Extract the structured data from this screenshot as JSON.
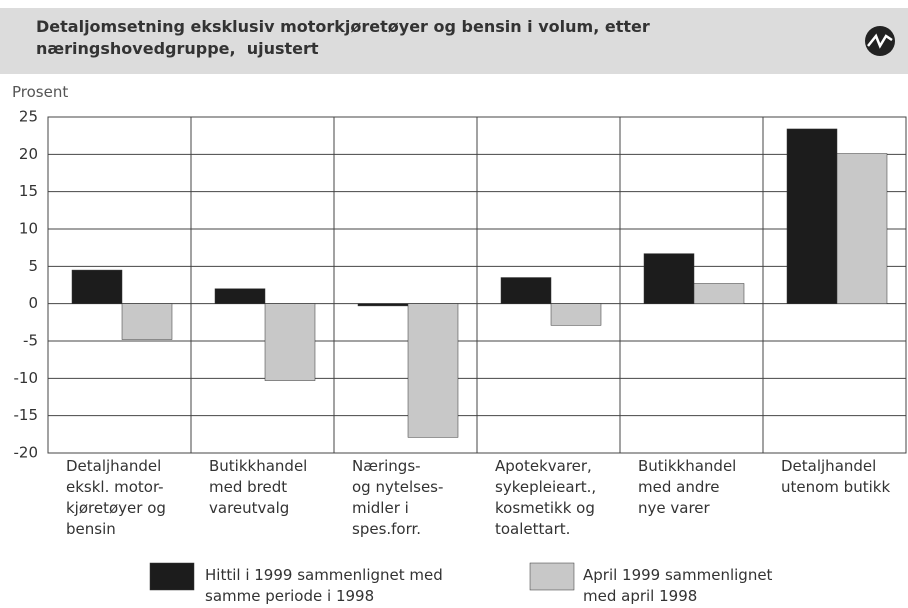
{
  "chart_data": {
    "type": "bar",
    "title": "Detaljomsetning eksklusiv motorkjøretøyer og bensin i volum, etter\nnæringshovedgruppe,  ujustert",
    "y_label": "Prosent",
    "categories": [
      "Detaljhandel\nekskl. motor-\nkjøretøyer og\nbensin",
      "Butikkhandel\nmed bredt\nvareutvalg",
      "Nærings-\nog nytelses-\nmidler i\nspes.forr.",
      "Apotekvarer,\nsykepleieart.,\nkosmetikk og\ntoalettart.",
      "Butikkhandel\nmed andre\nnye varer",
      "Detaljhandel\nutenom butikk"
    ],
    "series": [
      {
        "name": "Hittil i 1999 sammenlignet med\nsamme periode i 1998",
        "color": "#1c1c1c",
        "values": [
          4.5,
          2.0,
          -0.3,
          3.5,
          6.7,
          23.4
        ]
      },
      {
        "name": "April 1999 sammenlignet\nmed april 1998",
        "color": "#c8c8c8",
        "values": [
          -4.8,
          -10.3,
          -17.9,
          -2.9,
          2.7,
          20.1
        ]
      }
    ],
    "ylim": [
      -20,
      25
    ],
    "yticks": [
      -20,
      -15,
      -10,
      -5,
      0,
      5,
      10,
      15,
      20,
      25
    ],
    "grid": true
  }
}
